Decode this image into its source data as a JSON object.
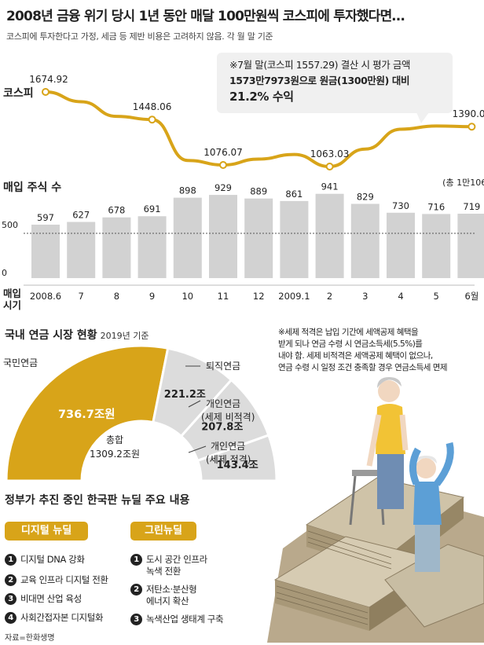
{
  "title": "2008년 금융 위기 당시 1년 동안 매달 100만원씩 코스피에 투자했다면…",
  "subtitle": "코스피에 투자한다고 가정, 세금 등 제반 비용은 고려하지 않음. 각 월 말 기준",
  "callout": {
    "line1": "※7월 말(코스피 1557.29) 결산 시 평가 금액",
    "line2": "1573만7973원으로 원금(1300만원) 대비",
    "line3": "21.2% 수익"
  },
  "labels": {
    "kospi": "코스피",
    "shares": "매입 주식 수",
    "y500": "500",
    "y0": "0",
    "buy_time": "매입\n시기",
    "total_shares": "(총 1만106주)"
  },
  "colors": {
    "accent": "#d8a419",
    "bar": "#d2d2d2",
    "pie_gray": "#dcdcdc"
  },
  "chart_data": [
    {
      "type": "line",
      "title": "",
      "x": [
        "2008.6",
        "7",
        "8",
        "9",
        "10",
        "11",
        "12",
        "2009.1",
        "2",
        "3",
        "4",
        "5",
        "6월"
      ],
      "series": [
        {
          "name": "코스피",
          "values": [
            1674.92,
            1594.67,
            1474.24,
            1448.06,
            1113.06,
            1076.07,
            1124.47,
            1162.11,
            1063.03,
            1206.26,
            1369.36,
            1395.89,
            1390.07
          ],
          "labeled": [
            1674.92,
            null,
            null,
            1448.06,
            null,
            1076.07,
            null,
            null,
            1063.03,
            null,
            null,
            null,
            1390.07
          ]
        }
      ]
    },
    {
      "type": "bar",
      "title": "",
      "categories": [
        "2008.6",
        "7",
        "8",
        "9",
        "10",
        "11",
        "12",
        "2009.1",
        "2",
        "3",
        "4",
        "5",
        "6월"
      ],
      "series": [
        {
          "name": "매입 주식 수",
          "values": [
            597,
            627,
            678,
            691,
            898,
            929,
            889,
            861,
            941,
            829,
            730,
            716,
            719
          ]
        }
      ],
      "ylim": [
        0,
        1000
      ],
      "reference_line": 500
    },
    {
      "type": "pie",
      "title": "국내 연금 시장 현황",
      "note": "2019년 기준",
      "total_label": "총합",
      "total_value": "1309.2조원",
      "slices": [
        {
          "label": "국민연금",
          "value": 736.7,
          "value_text": "736.7조원"
        },
        {
          "label": "퇴직연금",
          "value": 221.2,
          "value_text": "221.2조"
        },
        {
          "label": "개인연금 (세제 비적격)",
          "label_line1": "개인연금",
          "label_line2": "(세제 비적격)",
          "value": 207.8,
          "value_text": "207.8조"
        },
        {
          "label": "개인연금 (세제 적격)",
          "label_line1": "개인연금",
          "label_line2": "(세제 적격)",
          "value": 143.4,
          "value_text": "143.4조"
        }
      ]
    }
  ],
  "tax_note": [
    "※세제 적격은 납입 기간에 세액공제 혜택을",
    "받게 되나 연금 수령 시 연금소득세(5.5%)를",
    "내야 함. 세제 비적격은 세액공제 혜택이 없으나,",
    "연금 수령 시 일정 조건 충족할 경우 연금소득세 면제"
  ],
  "newdeal": {
    "title": "정부가 추진 중인 한국판 뉴딜 주요 내용",
    "digital_tag": "디지털 뉴딜",
    "green_tag": "그린뉴딜",
    "digital_items": [
      {
        "num": "1",
        "text": "디지털 DNA 강화"
      },
      {
        "num": "2",
        "text": "교육 인프라 디지털 전환"
      },
      {
        "num": "3",
        "text": "비대면 산업 육성"
      },
      {
        "num": "4",
        "text": "사회간접자본 디지털화"
      }
    ],
    "green_items": [
      {
        "num": "1",
        "text": "도시 공간 인프라\n녹색 전환"
      },
      {
        "num": "2",
        "text": "저탄소·분산형\n에너지 확산"
      },
      {
        "num": "3",
        "text": "녹색산업 생태계 구축"
      }
    ]
  },
  "source": "자료=한화생명"
}
